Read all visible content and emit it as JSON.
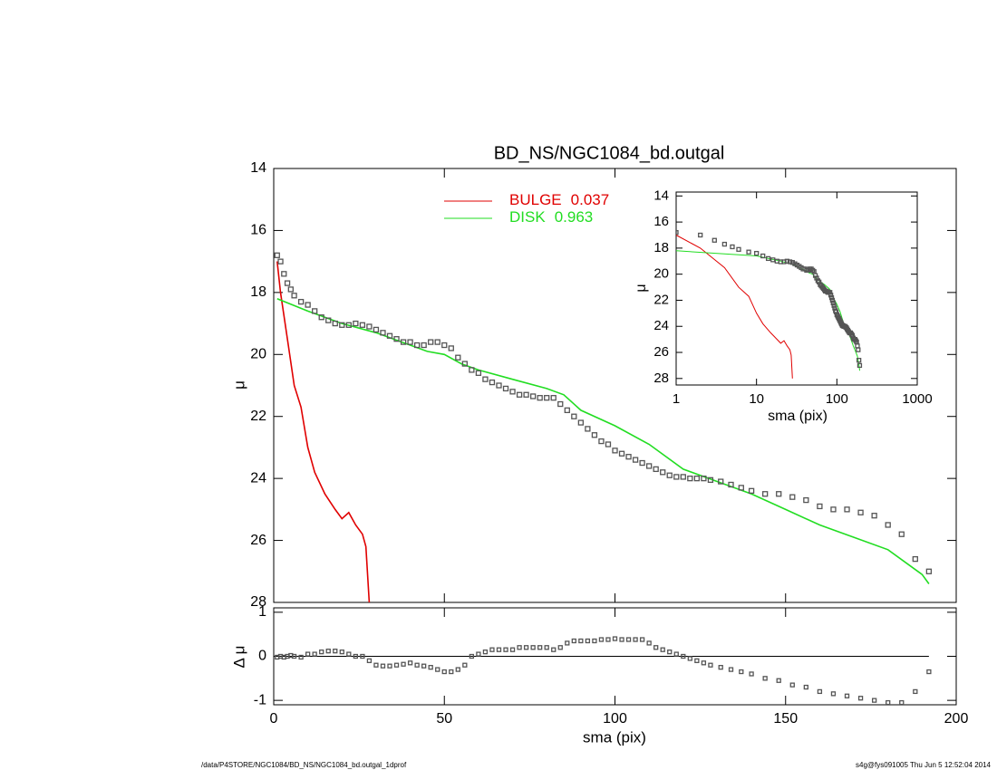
{
  "chart_data": [
    {
      "type": "profile",
      "title": "BD_NS/NGC1084_bd.outgal",
      "y_label": "μ",
      "x": [
        1,
        2,
        3,
        4,
        5,
        6,
        8,
        10,
        12,
        14,
        16,
        18,
        20,
        22,
        24,
        26,
        28,
        30,
        32,
        34,
        36,
        38,
        40,
        42,
        44,
        46,
        48,
        50,
        52,
        54,
        56,
        58,
        60,
        62,
        64,
        66,
        68,
        70,
        72,
        74,
        76,
        78,
        80,
        82,
        84,
        86,
        88,
        90,
        92,
        94,
        96,
        98,
        100,
        102,
        104,
        106,
        108,
        110,
        112,
        114,
        116,
        118,
        120,
        122,
        124,
        126,
        128,
        131,
        134,
        137,
        140,
        144,
        148,
        152,
        156,
        160,
        164,
        168,
        172,
        176,
        180,
        184,
        188,
        192
      ],
      "values": [
        16.8,
        17.0,
        17.4,
        17.7,
        17.9,
        18.1,
        18.3,
        18.4,
        18.6,
        18.8,
        18.9,
        19.0,
        19.05,
        19.05,
        19.0,
        19.05,
        19.1,
        19.2,
        19.3,
        19.4,
        19.5,
        19.6,
        19.6,
        19.7,
        19.7,
        19.6,
        19.6,
        19.7,
        19.8,
        20.1,
        20.3,
        20.5,
        20.6,
        20.8,
        20.9,
        21.0,
        21.1,
        21.2,
        21.3,
        21.3,
        21.35,
        21.4,
        21.4,
        21.4,
        21.6,
        21.8,
        22.0,
        22.2,
        22.4,
        22.6,
        22.8,
        22.9,
        23.1,
        23.2,
        23.3,
        23.4,
        23.5,
        23.6,
        23.7,
        23.8,
        23.9,
        23.95,
        23.95,
        24.0,
        24.0,
        24.0,
        24.05,
        24.1,
        24.2,
        24.3,
        24.4,
        24.5,
        24.5,
        24.6,
        24.7,
        24.9,
        25.0,
        25.0,
        25.1,
        25.2,
        25.5,
        25.8,
        26.6,
        27.0
      ],
      "marker_color": "#555555",
      "series": [
        {
          "name": "BULGE",
          "fraction": 0.037,
          "color": "#e00000",
          "x": [
            1,
            2,
            4,
            6,
            8,
            10,
            12,
            15,
            18,
            20,
            22,
            24,
            26,
            27,
            28
          ],
          "values": [
            17.0,
            18.0,
            19.5,
            21.0,
            21.7,
            23.0,
            23.8,
            24.5,
            25.0,
            25.3,
            25.1,
            25.5,
            25.8,
            26.2,
            28.0
          ]
        },
        {
          "name": "DISK",
          "fraction": 0.963,
          "color": "#22dd22",
          "x": [
            1,
            10,
            20,
            30,
            40,
            45,
            50,
            55,
            60,
            70,
            80,
            85,
            90,
            100,
            110,
            120,
            130,
            140,
            150,
            160,
            170,
            180,
            190,
            192
          ],
          "values": [
            18.2,
            18.6,
            19.0,
            19.3,
            19.7,
            19.9,
            20.0,
            20.3,
            20.5,
            20.8,
            21.1,
            21.3,
            21.8,
            22.3,
            22.9,
            23.7,
            24.1,
            24.5,
            25.0,
            25.5,
            25.9,
            26.3,
            27.1,
            27.4
          ]
        }
      ],
      "xlim": [
        0,
        200
      ],
      "ylim": [
        14,
        28
      ],
      "y_inverted": true,
      "yticks": [
        14,
        16,
        18,
        20,
        22,
        24,
        26,
        28
      ]
    },
    {
      "type": "residual",
      "x_label": "sma (pix)",
      "y_label": "Δ μ",
      "values": [
        -0.02,
        0,
        -0.02,
        0,
        0.02,
        0,
        -0.02,
        0.05,
        0.05,
        0.1,
        0.12,
        0.12,
        0.1,
        0.05,
        0,
        0,
        -0.1,
        -0.2,
        -0.22,
        -0.22,
        -0.2,
        -0.18,
        -0.15,
        -0.2,
        -0.22,
        -0.25,
        -0.3,
        -0.35,
        -0.35,
        -0.3,
        -0.2,
        0,
        0.05,
        0.1,
        0.15,
        0.15,
        0.15,
        0.15,
        0.2,
        0.2,
        0.2,
        0.2,
        0.2,
        0.15,
        0.2,
        0.3,
        0.35,
        0.35,
        0.35,
        0.35,
        0.38,
        0.38,
        0.4,
        0.38,
        0.38,
        0.38,
        0.38,
        0.3,
        0.2,
        0.15,
        0.1,
        0.05,
        0,
        -0.05,
        -0.1,
        -0.15,
        -0.2,
        -0.25,
        -0.3,
        -0.35,
        -0.4,
        -0.5,
        -0.55,
        -0.65,
        -0.7,
        -0.8,
        -0.85,
        -0.9,
        -0.95,
        -1.0,
        -1.05,
        -1.05,
        -0.8,
        -0.35
      ],
      "reference_line": 0,
      "xlim": [
        0,
        200
      ],
      "xticks": [
        0,
        50,
        100,
        150,
        200
      ],
      "ylim": [
        -1.1,
        1.1
      ],
      "yticks": [
        -1,
        0,
        1
      ]
    },
    {
      "type": "inset",
      "x_label": "sma (pix)",
      "y_label": "μ",
      "xlim": [
        1,
        1000
      ],
      "xscale": "log",
      "xticks": [
        1,
        10,
        100,
        1000
      ],
      "ylim": [
        13.7,
        28.5
      ],
      "y_inverted": true,
      "yticks": [
        14,
        16,
        18,
        20,
        22,
        24,
        26,
        28
      ]
    }
  ],
  "footer": {
    "left": "/data/P4STORE/NGC1084/BD_NS/NGC1084_bd.outgal_1dprof",
    "right": "s4g@fys091005  Thu Jun  5 12:52:04 2014"
  }
}
